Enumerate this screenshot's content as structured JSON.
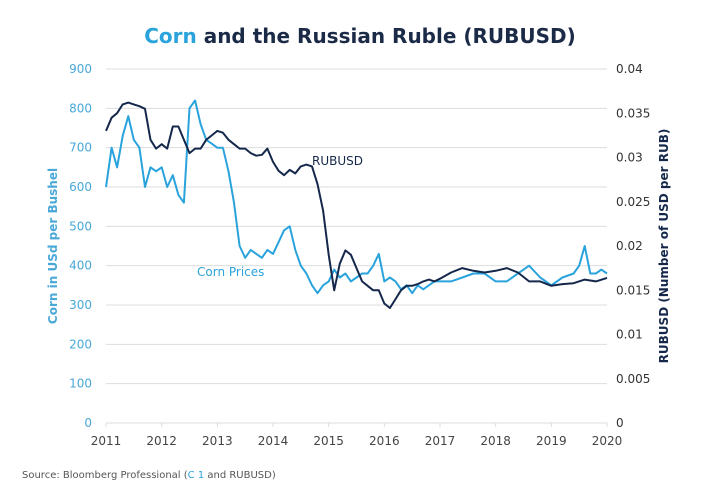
{
  "title": {
    "accent": "Corn",
    "rest": " and the Russian Ruble (RUBUSD)"
  },
  "source": {
    "prefix": "Source: Bloomberg Professional (",
    "accent": "C 1",
    "suffix": " and RUBUSD)"
  },
  "colors": {
    "corn": "#2aa3dc",
    "rub": "#15284b",
    "grid": "#dddddd",
    "left_axis_text": "#4aa8d8",
    "right_axis_text": "#333333",
    "x_axis_text": "#444444"
  },
  "chart_data": {
    "type": "line",
    "title": "Corn and the Russian Ruble (RUBUSD)",
    "xlabel": "",
    "ylabel": "Corn in USd per Bushel",
    "y2label": "RUBUSD (Number of USD per RUB)",
    "xlim": [
      2011,
      2020
    ],
    "ylim": [
      0,
      900
    ],
    "y2lim": [
      0,
      0.04
    ],
    "x_ticks": [
      "2011",
      "2012",
      "2013",
      "2014",
      "2015",
      "2016",
      "2017",
      "2018",
      "2019",
      "2020"
    ],
    "y_ticks": [
      "0",
      "100",
      "200",
      "300",
      "400",
      "500",
      "600",
      "700",
      "800",
      "900"
    ],
    "y2_ticks": [
      "0",
      "0.005",
      "0.01",
      "0.015",
      "0.02",
      "0.025",
      "0.03",
      "0.035",
      "0.04"
    ],
    "grid": true,
    "annotations": [
      {
        "text": "RUBUSD",
        "series": "RUBUSD",
        "x": 2015.1,
        "y": 670
      },
      {
        "text": "Corn Prices",
        "series": "Corn Prices",
        "x": 2012.8,
        "y": 385
      }
    ],
    "series": [
      {
        "name": "Corn Prices",
        "axis": "left",
        "x": [
          2011.0,
          2011.1,
          2011.2,
          2011.3,
          2011.4,
          2011.5,
          2011.6,
          2011.7,
          2011.8,
          2011.9,
          2012.0,
          2012.1,
          2012.2,
          2012.3,
          2012.4,
          2012.5,
          2012.6,
          2012.7,
          2012.8,
          2012.9,
          2013.0,
          2013.1,
          2013.2,
          2013.3,
          2013.4,
          2013.5,
          2013.6,
          2013.7,
          2013.8,
          2013.9,
          2014.0,
          2014.1,
          2014.2,
          2014.3,
          2014.4,
          2014.5,
          2014.6,
          2014.7,
          2014.8,
          2014.9,
          2015.0,
          2015.1,
          2015.2,
          2015.3,
          2015.4,
          2015.5,
          2015.6,
          2015.7,
          2015.8,
          2015.9,
          2016.0,
          2016.1,
          2016.2,
          2016.3,
          2016.4,
          2016.5,
          2016.6,
          2016.7,
          2016.8,
          2016.9,
          2017.0,
          2017.2,
          2017.4,
          2017.6,
          2017.8,
          2018.0,
          2018.2,
          2018.4,
          2018.6,
          2018.8,
          2019.0,
          2019.2,
          2019.4,
          2019.5,
          2019.6,
          2019.7,
          2019.8,
          2019.9,
          2020.0
        ],
        "values": [
          600,
          700,
          650,
          730,
          780,
          720,
          700,
          600,
          650,
          640,
          650,
          600,
          630,
          580,
          560,
          800,
          820,
          760,
          720,
          710,
          700,
          700,
          640,
          560,
          450,
          420,
          440,
          430,
          420,
          440,
          430,
          460,
          490,
          500,
          440,
          400,
          380,
          350,
          330,
          350,
          360,
          390,
          370,
          380,
          360,
          370,
          380,
          380,
          400,
          430,
          360,
          370,
          360,
          340,
          350,
          330,
          350,
          340,
          350,
          360,
          360,
          360,
          370,
          380,
          380,
          360,
          360,
          380,
          400,
          370,
          350,
          370,
          380,
          400,
          450,
          380,
          380,
          390,
          380
        ]
      },
      {
        "name": "RUBUSD",
        "axis": "right",
        "x": [
          2011.0,
          2011.1,
          2011.2,
          2011.3,
          2011.4,
          2011.5,
          2011.6,
          2011.7,
          2011.8,
          2011.9,
          2012.0,
          2012.1,
          2012.2,
          2012.3,
          2012.4,
          2012.5,
          2012.6,
          2012.7,
          2012.8,
          2012.9,
          2013.0,
          2013.1,
          2013.2,
          2013.3,
          2013.4,
          2013.5,
          2013.6,
          2013.7,
          2013.8,
          2013.9,
          2014.0,
          2014.1,
          2014.2,
          2014.3,
          2014.4,
          2014.5,
          2014.6,
          2014.7,
          2014.8,
          2014.9,
          2015.0,
          2015.1,
          2015.2,
          2015.3,
          2015.4,
          2015.5,
          2015.6,
          2015.7,
          2015.8,
          2015.9,
          2016.0,
          2016.1,
          2016.2,
          2016.3,
          2016.4,
          2016.5,
          2016.6,
          2016.7,
          2016.8,
          2016.9,
          2017.0,
          2017.2,
          2017.4,
          2017.6,
          2017.8,
          2018.0,
          2018.2,
          2018.4,
          2018.6,
          2018.8,
          2019.0,
          2019.2,
          2019.4,
          2019.6,
          2019.8,
          2020.0
        ],
        "values": [
          0.033,
          0.0345,
          0.035,
          0.036,
          0.0362,
          0.036,
          0.0358,
          0.0355,
          0.032,
          0.031,
          0.0315,
          0.031,
          0.0335,
          0.0335,
          0.032,
          0.0305,
          0.031,
          0.031,
          0.032,
          0.0325,
          0.033,
          0.0328,
          0.032,
          0.0315,
          0.031,
          0.031,
          0.0305,
          0.0302,
          0.0303,
          0.031,
          0.0295,
          0.0285,
          0.028,
          0.0286,
          0.0282,
          0.029,
          0.0292,
          0.029,
          0.027,
          0.024,
          0.019,
          0.015,
          0.018,
          0.0195,
          0.019,
          0.0175,
          0.016,
          0.0155,
          0.015,
          0.015,
          0.0135,
          0.013,
          0.014,
          0.015,
          0.0155,
          0.0155,
          0.0157,
          0.016,
          0.0162,
          0.016,
          0.0163,
          0.017,
          0.0175,
          0.0172,
          0.017,
          0.0172,
          0.0175,
          0.017,
          0.016,
          0.016,
          0.0155,
          0.0157,
          0.0158,
          0.0162,
          0.016,
          0.0164
        ]
      }
    ]
  }
}
